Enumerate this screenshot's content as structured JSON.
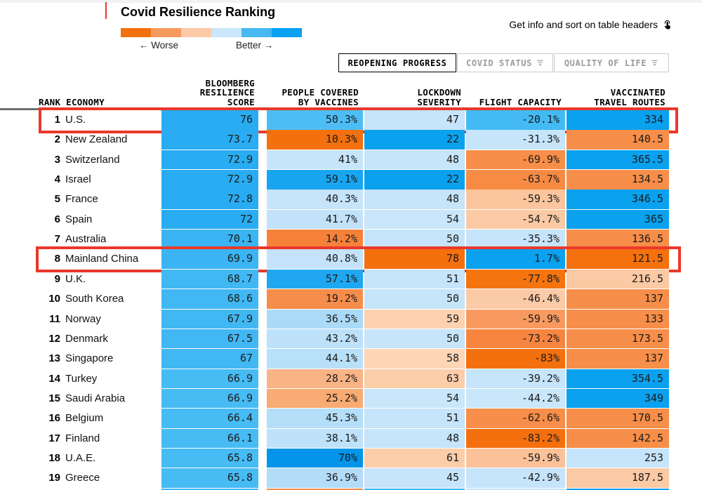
{
  "legend": {
    "title": "Covid Resilience Ranking",
    "worse_label": "← Worse",
    "better_label": "Better →",
    "colors": [
      "#f3700e",
      "#f79a5f",
      "#fbcaa6",
      "#c9e6fa",
      "#47b8f2",
      "#09a1f2"
    ]
  },
  "toolbar": {
    "info_hint": "Get info and sort on table headers",
    "pointer_icon": "tap-icon"
  },
  "tabs": [
    {
      "label": "REOPENING PROGRESS",
      "active": true
    },
    {
      "label": "COVID STATUS",
      "active": false,
      "icon": "filter-icon"
    },
    {
      "label": "QUALITY OF LIFE",
      "active": false,
      "icon": "filter-icon"
    }
  ],
  "table": {
    "headers": {
      "rank_economy": "RANK ECONOMY",
      "score": "BLOOMBERG\nRESILIENCE\nSCORE",
      "vaccines": "PEOPLE COVERED\nBY VACCINES",
      "lockdown": "LOCKDOWN\nSEVERITY",
      "flight": "FLIGHT CAPACITY",
      "routes": "VACCINATED\nTRAVEL ROUTES"
    },
    "rows": [
      {
        "rank": "1",
        "economy": "U.S.",
        "highlighted": true,
        "cells": [
          {
            "v": "76",
            "c": "#29acf2"
          },
          {
            "v": "50.3%",
            "c": "#4dbef5"
          },
          {
            "v": "47",
            "c": "#c6e4fa"
          },
          {
            "v": "-20.1%",
            "c": "#44baf4"
          },
          {
            "v": "334",
            "c": "#0aa1ef"
          }
        ]
      },
      {
        "rank": "2",
        "economy": "New Zealand",
        "highlighted": false,
        "cells": [
          {
            "v": "73.7",
            "c": "#29acf2"
          },
          {
            "v": "10.3%",
            "c": "#f4700e"
          },
          {
            "v": "22",
            "c": "#0aa1ef"
          },
          {
            "v": "-31.3%",
            "c": "#c6e4fa"
          },
          {
            "v": "140.5",
            "c": "#f78e49"
          }
        ]
      },
      {
        "rank": "3",
        "economy": "Switzerland",
        "highlighted": false,
        "cells": [
          {
            "v": "72.9",
            "c": "#29acf2"
          },
          {
            "v": "41%",
            "c": "#c6e4fa"
          },
          {
            "v": "48",
            "c": "#c6e4fa"
          },
          {
            "v": "-69.9%",
            "c": "#f78e49"
          },
          {
            "v": "365.5",
            "c": "#0aa1ef"
          }
        ]
      },
      {
        "rank": "4",
        "economy": "Israel",
        "highlighted": false,
        "cells": [
          {
            "v": "72.9",
            "c": "#29acf2"
          },
          {
            "v": "59.1%",
            "c": "#18a5f1"
          },
          {
            "v": "22",
            "c": "#0aa1ef"
          },
          {
            "v": "-63.7%",
            "c": "#f78b44"
          },
          {
            "v": "134.5",
            "c": "#f78e49"
          }
        ]
      },
      {
        "rank": "5",
        "economy": "France",
        "highlighted": false,
        "cells": [
          {
            "v": "72.8",
            "c": "#29acf2"
          },
          {
            "v": "40.3%",
            "c": "#c6e4fa"
          },
          {
            "v": "48",
            "c": "#c6e4fa"
          },
          {
            "v": "-59.3%",
            "c": "#fbc59d"
          },
          {
            "v": "346.5",
            "c": "#0aa1ef"
          }
        ]
      },
      {
        "rank": "6",
        "economy": "Spain",
        "highlighted": false,
        "cells": [
          {
            "v": "72",
            "c": "#29acf2"
          },
          {
            "v": "41.7%",
            "c": "#c2e2f9"
          },
          {
            "v": "54",
            "c": "#c9e6fa"
          },
          {
            "v": "-54.7%",
            "c": "#fbc9a4"
          },
          {
            "v": "365",
            "c": "#0aa1ef"
          }
        ]
      },
      {
        "rank": "7",
        "economy": "Australia",
        "highlighted": false,
        "cells": [
          {
            "v": "70.1",
            "c": "#3bb4f3"
          },
          {
            "v": "14.2%",
            "c": "#f6823a"
          },
          {
            "v": "50",
            "c": "#c6e4fa"
          },
          {
            "v": "-35.3%",
            "c": "#c6e4fa"
          },
          {
            "v": "136.5",
            "c": "#f78e49"
          }
        ]
      },
      {
        "rank": "8",
        "economy": "Mainland China",
        "highlighted": true,
        "cells": [
          {
            "v": "69.9",
            "c": "#3bb4f3"
          },
          {
            "v": "40.8%",
            "c": "#c4e3fa"
          },
          {
            "v": "78",
            "c": "#f4700e"
          },
          {
            "v": "1.7%",
            "c": "#0aa1ef"
          },
          {
            "v": "121.5",
            "c": "#f4710e"
          }
        ]
      },
      {
        "rank": "9",
        "economy": "U.K.",
        "highlighted": false,
        "cells": [
          {
            "v": "68.7",
            "c": "#41b8f3"
          },
          {
            "v": "57.1%",
            "c": "#1fa8f1"
          },
          {
            "v": "51",
            "c": "#c6e4fa"
          },
          {
            "v": "-77.8%",
            "c": "#f4750f"
          },
          {
            "v": "216.5",
            "c": "#fbc9a4"
          }
        ]
      },
      {
        "rank": "10",
        "economy": "South Korea",
        "highlighted": false,
        "cells": [
          {
            "v": "68.6",
            "c": "#41b8f3"
          },
          {
            "v": "19.2%",
            "c": "#f68d4b"
          },
          {
            "v": "50",
            "c": "#c6e4fa"
          },
          {
            "v": "-46.4%",
            "c": "#fbcaa6"
          },
          {
            "v": "137",
            "c": "#f78e49"
          }
        ]
      },
      {
        "rank": "11",
        "economy": "Norway",
        "highlighted": false,
        "cells": [
          {
            "v": "67.9",
            "c": "#41b8f3"
          },
          {
            "v": "36.5%",
            "c": "#aadaf8"
          },
          {
            "v": "59",
            "c": "#fcd2b1"
          },
          {
            "v": "-59.9%",
            "c": "#f89a5f"
          },
          {
            "v": "133",
            "c": "#f78e49"
          }
        ]
      },
      {
        "rank": "12",
        "economy": "Denmark",
        "highlighted": false,
        "cells": [
          {
            "v": "67.5",
            "c": "#41b8f3"
          },
          {
            "v": "43.2%",
            "c": "#bce1f9"
          },
          {
            "v": "50",
            "c": "#c6e4fa"
          },
          {
            "v": "-73.2%",
            "c": "#f78540"
          },
          {
            "v": "173.5",
            "c": "#f78e49"
          }
        ]
      },
      {
        "rank": "13",
        "economy": "Singapore",
        "highlighted": false,
        "cells": [
          {
            "v": "67",
            "c": "#41b8f3"
          },
          {
            "v": "44.1%",
            "c": "#b9e0f9"
          },
          {
            "v": "58",
            "c": "#fcd6b7"
          },
          {
            "v": "-83%",
            "c": "#f4700e"
          },
          {
            "v": "137",
            "c": "#f78e49"
          }
        ]
      },
      {
        "rank": "14",
        "economy": "Turkey",
        "highlighted": false,
        "cells": [
          {
            "v": "66.9",
            "c": "#47bbf4"
          },
          {
            "v": "28.2%",
            "c": "#f9b485"
          },
          {
            "v": "63",
            "c": "#fccda9"
          },
          {
            "v": "-39.2%",
            "c": "#c6e4fa"
          },
          {
            "v": "354.5",
            "c": "#0aa1ef"
          }
        ]
      },
      {
        "rank": "15",
        "economy": "Saudi Arabia",
        "highlighted": false,
        "cells": [
          {
            "v": "66.9",
            "c": "#47bbf4"
          },
          {
            "v": "25.2%",
            "c": "#f8ab72"
          },
          {
            "v": "54",
            "c": "#c9e6fa"
          },
          {
            "v": "-44.2%",
            "c": "#c9e6fa"
          },
          {
            "v": "349",
            "c": "#0aa1ef"
          }
        ]
      },
      {
        "rank": "16",
        "economy": "Belgium",
        "highlighted": false,
        "cells": [
          {
            "v": "66.4",
            "c": "#47bbf4"
          },
          {
            "v": "45.3%",
            "c": "#b5def8"
          },
          {
            "v": "51",
            "c": "#c6e4fa"
          },
          {
            "v": "-62.6%",
            "c": "#f78e49"
          },
          {
            "v": "170.5",
            "c": "#f78e49"
          }
        ]
      },
      {
        "rank": "17",
        "economy": "Finland",
        "highlighted": false,
        "cells": [
          {
            "v": "66.1",
            "c": "#47bbf4"
          },
          {
            "v": "38.1%",
            "c": "#bee2f9"
          },
          {
            "v": "48",
            "c": "#c6e4fa"
          },
          {
            "v": "-83.2%",
            "c": "#f4700e"
          },
          {
            "v": "142.5",
            "c": "#f78e49"
          }
        ]
      },
      {
        "rank": "18",
        "economy": "U.A.E.",
        "highlighted": false,
        "cells": [
          {
            "v": "65.8",
            "c": "#47bbf4"
          },
          {
            "v": "70%",
            "c": "#0295e9"
          },
          {
            "v": "61",
            "c": "#fccda9"
          },
          {
            "v": "-59.9%",
            "c": "#fbc29a"
          },
          {
            "v": "253",
            "c": "#c6e4fa"
          }
        ]
      },
      {
        "rank": "19",
        "economy": "Greece",
        "highlighted": false,
        "cells": [
          {
            "v": "65.8",
            "c": "#47bbf4"
          },
          {
            "v": "36.9%",
            "c": "#b2dcf8"
          },
          {
            "v": "45",
            "c": "#c6e4fa"
          },
          {
            "v": "-42.9%",
            "c": "#c6e4fa"
          },
          {
            "v": "187.5",
            "c": "#fbc9a4"
          }
        ]
      }
    ],
    "partial_row_colors": [
      "#41b7f3",
      "#f68d4b",
      "#3db5f2",
      "#c6e4fa",
      "#0aa1ef"
    ]
  },
  "chart_data": {
    "type": "table",
    "title": "Covid Resilience Ranking",
    "legend": {
      "worse": "← Worse",
      "better": "Better →",
      "scale_colors": [
        "#f3700e",
        "#f79a5f",
        "#fbcaa6",
        "#c9e6fa",
        "#47b8f2",
        "#09a1f2"
      ]
    },
    "columns": [
      "Rank",
      "Economy",
      "Bloomberg Resilience Score",
      "People Covered by Vaccines",
      "Lockdown Severity",
      "Flight Capacity",
      "Vaccinated Travel Routes"
    ],
    "rows": [
      [
        1,
        "U.S.",
        76,
        50.3,
        47,
        -20.1,
        334
      ],
      [
        2,
        "New Zealand",
        73.7,
        10.3,
        22,
        -31.3,
        140.5
      ],
      [
        3,
        "Switzerland",
        72.9,
        41,
        48,
        -69.9,
        365.5
      ],
      [
        4,
        "Israel",
        72.9,
        59.1,
        22,
        -63.7,
        134.5
      ],
      [
        5,
        "France",
        72.8,
        40.3,
        48,
        -59.3,
        346.5
      ],
      [
        6,
        "Spain",
        72,
        41.7,
        54,
        -54.7,
        365
      ],
      [
        7,
        "Australia",
        70.1,
        14.2,
        50,
        -35.3,
        136.5
      ],
      [
        8,
        "Mainland China",
        69.9,
        40.8,
        78,
        1.7,
        121.5
      ],
      [
        9,
        "U.K.",
        68.7,
        57.1,
        51,
        -77.8,
        216.5
      ],
      [
        10,
        "South Korea",
        68.6,
        19.2,
        50,
        -46.4,
        137
      ],
      [
        11,
        "Norway",
        67.9,
        36.5,
        59,
        -59.9,
        133
      ],
      [
        12,
        "Denmark",
        67.5,
        43.2,
        50,
        -73.2,
        173.5
      ],
      [
        13,
        "Singapore",
        67,
        44.1,
        58,
        -83,
        137
      ],
      [
        14,
        "Turkey",
        66.9,
        28.2,
        63,
        -39.2,
        354.5
      ],
      [
        15,
        "Saudi Arabia",
        66.9,
        25.2,
        54,
        -44.2,
        349
      ],
      [
        16,
        "Belgium",
        66.4,
        45.3,
        51,
        -62.6,
        170.5
      ],
      [
        17,
        "Finland",
        66.1,
        38.1,
        48,
        -83.2,
        142.5
      ],
      [
        18,
        "U.A.E.",
        65.8,
        70,
        61,
        -59.9,
        253
      ],
      [
        19,
        "Greece",
        65.8,
        36.9,
        45,
        -42.9,
        187.5
      ]
    ],
    "highlighted_rows": [
      1,
      8
    ]
  }
}
